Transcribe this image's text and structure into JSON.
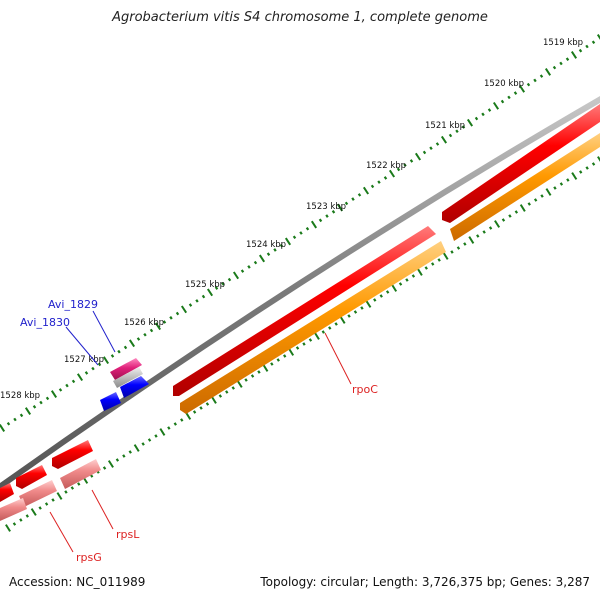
{
  "header": {
    "title": "Agrobacterium vitis S4 chromosome 1, complete genome"
  },
  "footer": {
    "accession": "Accession: NC_011989",
    "summary": "Topology: circular; Length: 3,726,375 bp; Genes: 3,287"
  },
  "ruler": {
    "tick_labels": [
      "1519 kbp",
      "1520 kbp",
      "1521 kbp",
      "1522 kbp",
      "1523 kbp",
      "1524 kbp",
      "1525 kbp",
      "1526 kbp",
      "1527 kbp",
      "1528 kbp"
    ]
  },
  "genes": [
    {
      "name": "rpoC",
      "color": "#dd2222"
    },
    {
      "name": "rpsL",
      "color": "#dd2222"
    },
    {
      "name": "rpsG",
      "color": "#dd2222"
    },
    {
      "name": "Avi_1829",
      "color": "#2222cc"
    },
    {
      "name": "Avi_1830",
      "color": "#2222cc"
    }
  ],
  "colors": {
    "backbone": "#808080",
    "cds": "#ff0000",
    "orange_track": "#ff9900",
    "pink_track": "#f08a8a",
    "blue_gene": "#0000ff",
    "magenta_gene": "#e0207a",
    "ticks": "#1a7a1a"
  }
}
